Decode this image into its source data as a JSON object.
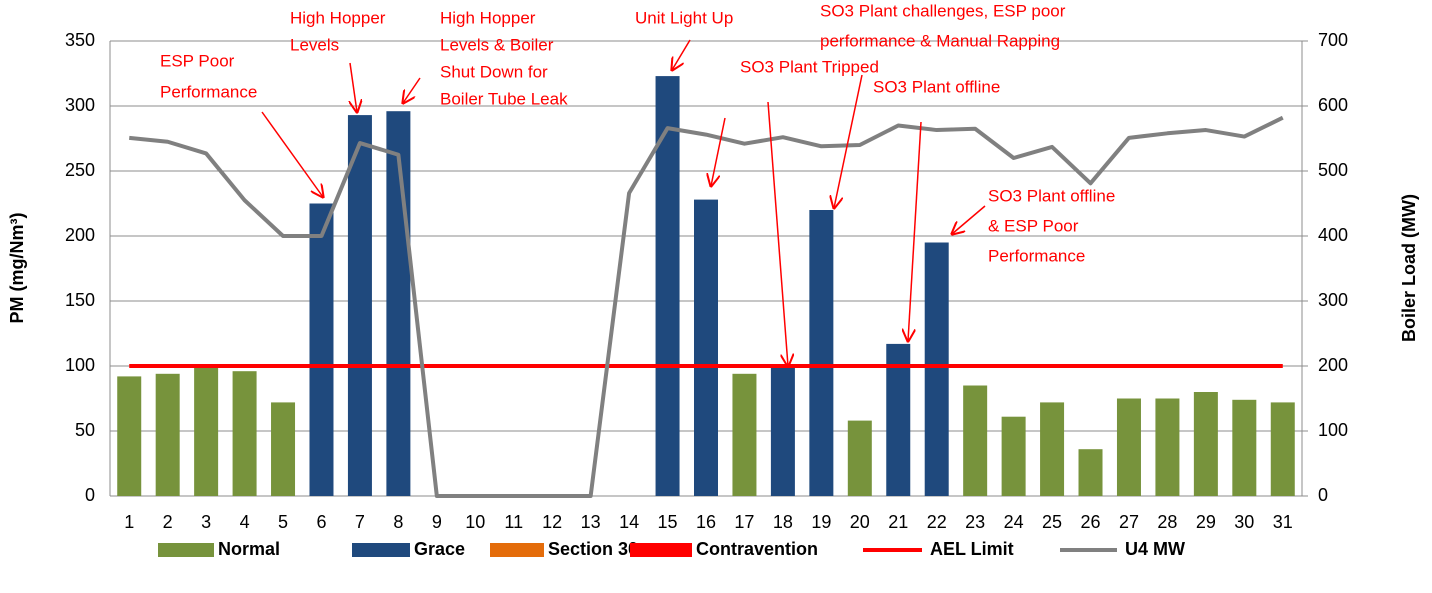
{
  "chart_data": {
    "type": "bar",
    "categories": [
      1,
      2,
      3,
      4,
      5,
      6,
      7,
      8,
      9,
      10,
      11,
      12,
      13,
      14,
      15,
      16,
      17,
      18,
      19,
      20,
      21,
      22,
      23,
      24,
      25,
      26,
      27,
      28,
      29,
      30,
      31
    ],
    "series": [
      {
        "name": "Normal",
        "color": "#77933c",
        "values": [
          92,
          94,
          100,
          96,
          72,
          null,
          null,
          null,
          null,
          null,
          null,
          null,
          null,
          null,
          null,
          null,
          94,
          null,
          null,
          58,
          null,
          null,
          85,
          61,
          72,
          36,
          75,
          75,
          80,
          74,
          72
        ]
      },
      {
        "name": "Grace",
        "color": "#1f497d",
        "values": [
          null,
          null,
          null,
          null,
          null,
          225,
          293,
          296,
          null,
          null,
          null,
          null,
          null,
          null,
          323,
          228,
          null,
          101,
          220,
          null,
          117,
          195,
          null,
          null,
          null,
          null,
          null,
          null,
          null,
          null,
          null
        ]
      },
      {
        "name": "Section 30",
        "color": "#e46c0a",
        "values": [
          null,
          null,
          null,
          null,
          null,
          null,
          null,
          null,
          null,
          null,
          null,
          null,
          null,
          null,
          null,
          null,
          null,
          null,
          null,
          null,
          null,
          null,
          null,
          null,
          null,
          null,
          null,
          null,
          null,
          null,
          null
        ]
      },
      {
        "name": "Contravention",
        "color": "#ff0000",
        "values": [
          null,
          null,
          null,
          null,
          null,
          null,
          null,
          null,
          null,
          null,
          null,
          null,
          null,
          null,
          null,
          null,
          null,
          null,
          null,
          null,
          null,
          null,
          null,
          null,
          null,
          null,
          null,
          null,
          null,
          null,
          null
        ]
      },
      {
        "name": "AEL Limit",
        "type": "line",
        "color": "#ff0000",
        "values": [
          100,
          100,
          100,
          100,
          100,
          100,
          100,
          100,
          100,
          100,
          100,
          100,
          100,
          100,
          100,
          100,
          100,
          100,
          100,
          100,
          100,
          100,
          100,
          100,
          100,
          100,
          100,
          100,
          100,
          100,
          100
        ]
      },
      {
        "name": "U4 MW",
        "type": "line",
        "axis": "y2",
        "color": "#808080",
        "values": [
          551,
          545,
          527,
          455,
          400,
          400,
          543,
          525,
          0,
          0,
          0,
          0,
          0,
          466,
          566,
          556,
          542,
          552,
          538,
          540,
          570,
          563,
          565,
          520,
          537,
          481,
          551,
          558,
          563,
          553,
          582
        ]
      }
    ],
    "ylabel": "PM (mg/Nm³)",
    "y2label": "Boiler Load (MW)",
    "ylim": [
      0,
      350
    ],
    "yticks": [
      0,
      50,
      100,
      150,
      200,
      250,
      300,
      350
    ],
    "y2lim": [
      0,
      700
    ],
    "y2ticks": [
      0,
      100,
      200,
      300,
      400,
      500,
      600,
      700
    ],
    "grid": true,
    "legend": "bottom",
    "annotations": [
      {
        "lines": [
          "ESP Poor",
          "Performance"
        ]
      },
      {
        "lines": [
          "High Hopper",
          "Levels"
        ]
      },
      {
        "lines": [
          "High Hopper",
          "Levels & Boiler",
          "Shut Down for",
          "Boiler Tube Leak"
        ]
      },
      {
        "lines": [
          "Unit Light Up"
        ]
      },
      {
        "lines": [
          "SO3 Plant challenges, ESP poor",
          "performance & Manual Rapping"
        ]
      },
      {
        "lines": [
          "SO3 Plant Tripped"
        ]
      },
      {
        "lines": [
          "SO3 Plant offline"
        ]
      },
      {
        "lines": [
          "SO3 Plant offline",
          "& ESP Poor",
          "Performance"
        ]
      }
    ]
  }
}
